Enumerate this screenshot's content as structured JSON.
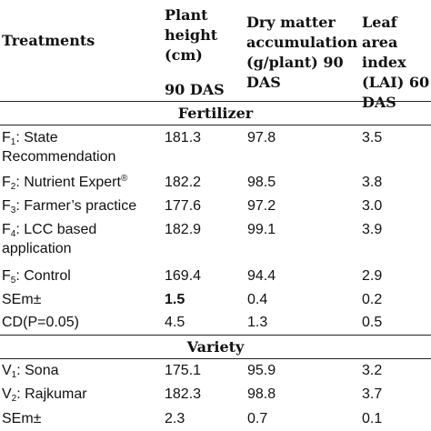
{
  "headers": {
    "treatments": "Treatments",
    "plant_height_1": "Plant\nheight\n(cm)",
    "plant_height_2": "90 DAS",
    "dry_matter": "Dry matter\naccumulation\n(g/plant) 90\nDAS",
    "lai": "Leaf area\nindex\n(LAI) 60\nDAS"
  },
  "sections": {
    "fertilizer": "Fertilizer",
    "variety": "Variety"
  },
  "fertilizer_rows": [
    {
      "label_prefix": "F",
      "sub": "1",
      "label_rest": ": State",
      "label_line2": "Recommendation",
      "plant_height": "181.3",
      "dry_matter": "97.8",
      "lai": "3.5"
    },
    {
      "label_prefix": "F",
      "sub": "2",
      "label_rest": ": Nutrient Expert",
      "sup": "®",
      "plant_height": "182.2",
      "dry_matter": "98.5",
      "lai": "3.8"
    },
    {
      "label_prefix": "F",
      "sub": "3",
      "label_rest": ": Farmer’s practice",
      "plant_height": "177.6",
      "dry_matter": "97.2",
      "lai": "3.0"
    },
    {
      "label_prefix": "F",
      "sub": "4",
      "label_rest": ": LCC based",
      "label_line2": "application",
      "plant_height": "182.9",
      "dry_matter": "99.1",
      "lai": "3.9"
    },
    {
      "label_prefix": "F",
      "sub": "5",
      "label_rest": ": Control",
      "plant_height": "169.4",
      "dry_matter": "94.4",
      "lai": "2.9"
    }
  ],
  "fertilizer_stats": [
    {
      "label": "SEm±",
      "plant_height": "1.5",
      "dry_matter": "0.4",
      "lai": "0.2"
    },
    {
      "label": "CD(P=0.05)",
      "plant_height": "4.5",
      "dry_matter": "1.3",
      "lai": "0.5"
    }
  ],
  "variety_rows": [
    {
      "label_prefix": "V",
      "sub": "1",
      "label_rest": ": Sona",
      "plant_height": "175.1",
      "dry_matter": "95.9",
      "lai": "3.2"
    },
    {
      "label_prefix": "V",
      "sub": "2",
      "label_rest": ": Rajkumar",
      "plant_height": "182.3",
      "dry_matter": "98.8",
      "lai": "3.7"
    }
  ],
  "variety_stats": [
    {
      "label": "SEm±",
      "plant_height": "2.3",
      "dry_matter": "0.7",
      "lai": "0.1"
    }
  ]
}
